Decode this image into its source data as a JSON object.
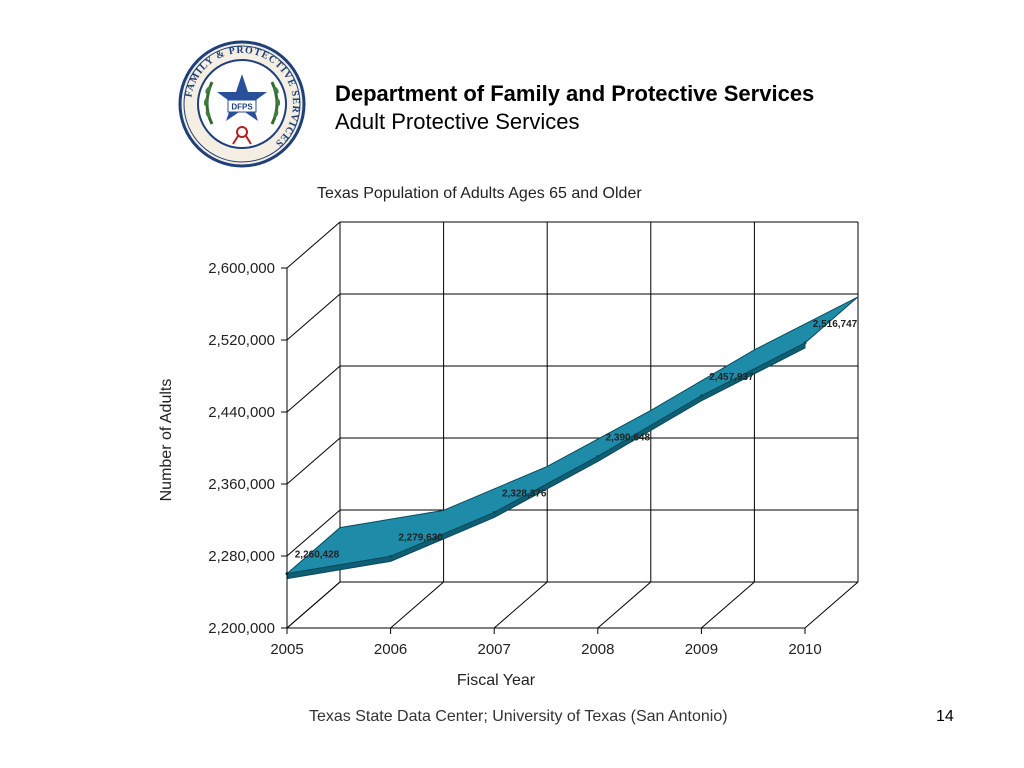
{
  "header": {
    "title": "Department of Family and Protective Services",
    "subtitle": "Adult Protective Services"
  },
  "seal": {
    "ring_text": "FAMILY & PROTECTIVE SERVICES",
    "center_text": "DFPS",
    "colors": {
      "ring": "#1f3f7a",
      "star": "#2a4f9a",
      "wreath": "#2f6b2f",
      "ribbon": "#b22222"
    }
  },
  "chart_data": {
    "type": "area",
    "title": "Texas Population of Adults Ages 65 and Older",
    "xlabel": "Fiscal Year",
    "ylabel": "Number of  Adults",
    "categories": [
      "2005",
      "2006",
      "2007",
      "2008",
      "2009",
      "2010"
    ],
    "series": [
      {
        "values": [
          2260428,
          2279630,
          2328376,
          2390648,
          2457937,
          2516747
        ],
        "labels": [
          "2,260,428",
          "2,279,630",
          "2,328,376",
          "2,390,648",
          "2,457,937",
          "2,516,747"
        ]
      }
    ],
    "ylim": [
      2200000,
      2600000
    ],
    "yticks": [
      2200000,
      2280000,
      2360000,
      2440000,
      2520000,
      2600000
    ],
    "ytick_labels": [
      "2,200,000",
      "2,280,000",
      "2,360,000",
      "2,440,000",
      "2,520,000",
      "2,600,000"
    ],
    "three_d": true,
    "grid": true,
    "colors": {
      "series": "#1e8ca8",
      "series_edge": "#0b4a5c",
      "grid": "#000000"
    }
  },
  "footer": {
    "source": "Texas State Data Center; University of Texas (San Antonio)",
    "page_number": "14"
  }
}
